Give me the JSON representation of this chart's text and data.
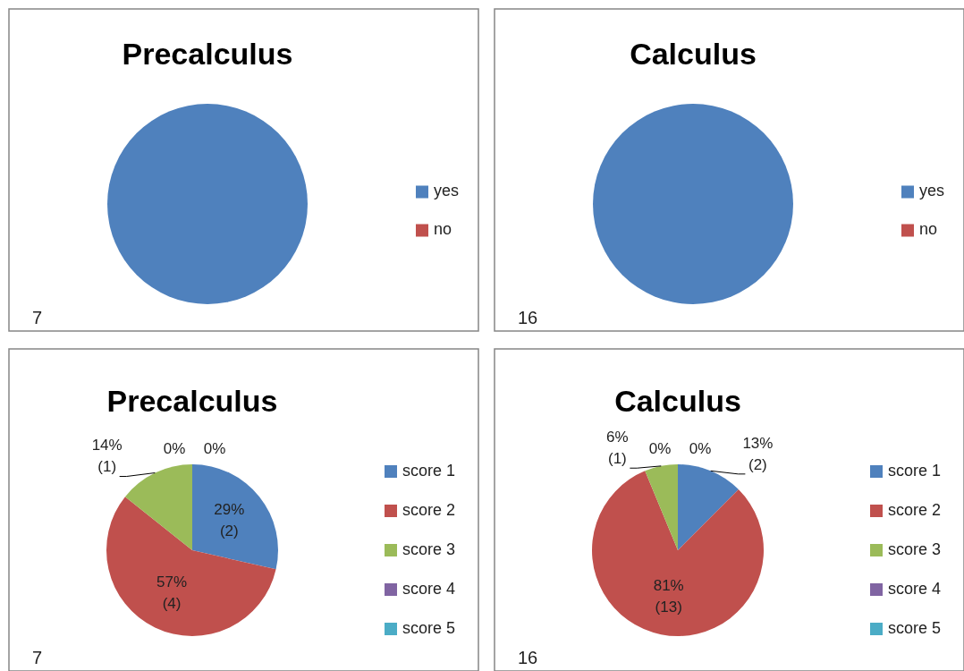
{
  "chart_data": [
    {
      "type": "pie",
      "title": "Precalculus",
      "categories": [
        "yes",
        "no"
      ],
      "values": [
        100,
        0
      ],
      "colors": [
        "#4f81bd",
        "#c0504d"
      ],
      "legend": "right",
      "annotations": [
        "7"
      ]
    },
    {
      "type": "pie",
      "title": "Calculus",
      "categories": [
        "yes",
        "no"
      ],
      "values": [
        100,
        0
      ],
      "colors": [
        "#4f81bd",
        "#c0504d"
      ],
      "legend": "right",
      "annotations": [
        "16"
      ]
    },
    {
      "type": "pie",
      "title": "Precalculus",
      "categories": [
        "score 1",
        "score 2",
        "score 3",
        "score 4",
        "score 5"
      ],
      "values": [
        2,
        4,
        1,
        0,
        0
      ],
      "colors": [
        "#4f81bd",
        "#c0504d",
        "#9bbb59",
        "#8064a2",
        "#4bacc6"
      ],
      "value_labels": [
        "29%\n(2)",
        "57%\n(4)",
        "14%\n(1)",
        "0%",
        "0%"
      ],
      "legend": "right",
      "annotations": [
        "7"
      ]
    },
    {
      "type": "pie",
      "title": "Calculus",
      "categories": [
        "score 1",
        "score 2",
        "score 3",
        "score 4",
        "score 5"
      ],
      "values": [
        2,
        13,
        1,
        0,
        0
      ],
      "colors": [
        "#4f81bd",
        "#c0504d",
        "#9bbb59",
        "#8064a2",
        "#4bacc6"
      ],
      "value_labels": [
        "13%\n(2)",
        "81%\n(13)",
        "6%\n(1)",
        "0%",
        "0%"
      ],
      "legend": "right",
      "annotations": [
        "16"
      ]
    }
  ]
}
